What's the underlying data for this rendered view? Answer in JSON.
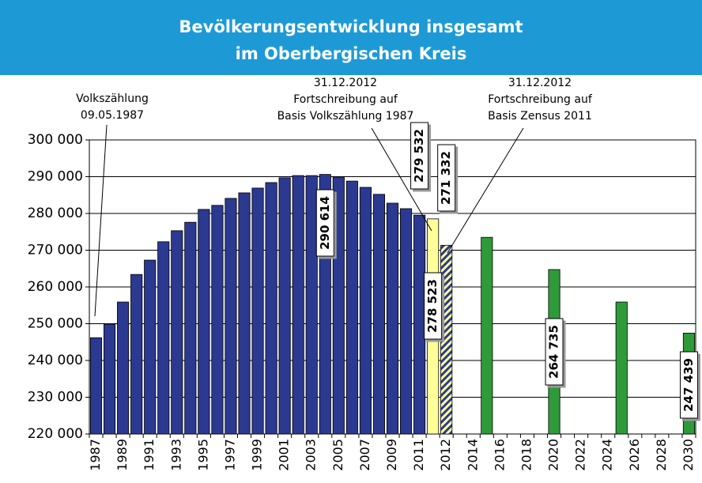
{
  "chart_data": {
    "type": "bar",
    "title": [
      "Bevölkerungsentwicklung insgesamt",
      "im Oberbergischen Kreis"
    ],
    "annotations": [
      {
        "text": [
          "Volkszählung",
          "09.05.1987"
        ]
      },
      {
        "text": [
          "31.12.2012",
          "Fortschreibung auf",
          "Basis Volkszählung 1987"
        ]
      },
      {
        "text": [
          "31.12.2012",
          "Fortschreibung auf",
          "Basis Zensus 2011"
        ]
      }
    ],
    "categories": [
      "1987",
      null,
      "1989",
      null,
      "1991",
      null,
      "1993",
      null,
      "1995",
      null,
      "1997",
      null,
      "1999",
      null,
      "2001",
      null,
      "2003",
      null,
      "2005",
      null,
      "2007",
      null,
      "2009",
      null,
      "2011",
      null,
      "2012",
      null,
      "2014",
      null,
      "2016",
      null,
      "2018",
      null,
      "2020",
      null,
      "2022",
      null,
      "2024",
      null,
      "2026",
      null,
      "2028",
      null,
      "2030"
    ],
    "series": [
      {
        "color": "#2b3990",
        "values": [
          246200,
          249900,
          255900,
          263400,
          267300,
          272300,
          275300,
          277600,
          281100,
          282200,
          284100,
          285600,
          286900,
          288400,
          289700,
          290300,
          290300,
          290614,
          289900,
          288800,
          287100,
          285200,
          282800,
          281300,
          279532,
          null,
          null,
          null,
          null,
          null,
          null,
          null,
          null,
          null,
          null,
          null,
          null,
          null,
          null,
          null,
          null,
          null,
          null,
          null,
          null
        ],
        "value_labels": [
          null,
          null,
          null,
          null,
          null,
          null,
          null,
          null,
          null,
          null,
          null,
          null,
          null,
          null,
          null,
          null,
          null,
          "290 614",
          null,
          null,
          null,
          null,
          null,
          null,
          "279 532",
          null,
          null,
          null,
          null,
          null,
          null,
          null,
          null,
          null,
          null,
          null,
          null,
          null,
          null,
          null,
          null,
          null,
          null,
          null,
          null
        ]
      },
      {
        "color": "#ffff99",
        "values": [
          null,
          null,
          null,
          null,
          null,
          null,
          null,
          null,
          null,
          null,
          null,
          null,
          null,
          null,
          null,
          null,
          null,
          null,
          null,
          null,
          null,
          null,
          null,
          null,
          null,
          278523,
          null,
          null,
          null,
          null,
          null,
          null,
          null,
          null,
          null,
          null,
          null,
          null,
          null,
          null,
          null,
          null,
          null,
          null,
          null
        ],
        "value_labels": [
          null,
          null,
          null,
          null,
          null,
          null,
          null,
          null,
          null,
          null,
          null,
          null,
          null,
          null,
          null,
          null,
          null,
          null,
          null,
          null,
          null,
          null,
          null,
          null,
          null,
          "278 523",
          null,
          null,
          null,
          null,
          null,
          null,
          null,
          null,
          null,
          null,
          null,
          null,
          null,
          null,
          null,
          null,
          null,
          null,
          null
        ]
      },
      {
        "color": "#2b3990",
        "hatch_color": "#ffff99",
        "values": [
          null,
          null,
          null,
          null,
          null,
          null,
          null,
          null,
          null,
          null,
          null,
          null,
          null,
          null,
          null,
          null,
          null,
          null,
          null,
          null,
          null,
          null,
          null,
          null,
          null,
          null,
          271332,
          null,
          null,
          null,
          null,
          null,
          null,
          null,
          null,
          null,
          null,
          null,
          null,
          null,
          null,
          null,
          null,
          null,
          null
        ],
        "value_labels": [
          null,
          null,
          null,
          null,
          null,
          null,
          null,
          null,
          null,
          null,
          null,
          null,
          null,
          null,
          null,
          null,
          null,
          null,
          null,
          null,
          null,
          null,
          null,
          null,
          null,
          null,
          "271 332",
          null,
          null,
          null,
          null,
          null,
          null,
          null,
          null,
          null,
          null,
          null,
          null,
          null,
          null,
          null,
          null,
          null,
          null
        ]
      },
      {
        "color": "#2e9a3a",
        "values": [
          null,
          null,
          null,
          null,
          null,
          null,
          null,
          null,
          null,
          null,
          null,
          null,
          null,
          null,
          null,
          null,
          null,
          null,
          null,
          null,
          null,
          null,
          null,
          null,
          null,
          null,
          null,
          null,
          null,
          273500,
          null,
          null,
          null,
          null,
          264735,
          null,
          null,
          null,
          null,
          255900,
          null,
          null,
          null,
          null,
          247439
        ],
        "value_labels": [
          null,
          null,
          null,
          null,
          null,
          null,
          null,
          null,
          null,
          null,
          null,
          null,
          null,
          null,
          null,
          null,
          null,
          null,
          null,
          null,
          null,
          null,
          null,
          null,
          null,
          null,
          null,
          null,
          null,
          null,
          null,
          null,
          null,
          null,
          "264 735",
          null,
          null,
          null,
          null,
          null,
          null,
          null,
          null,
          null,
          "247 439"
        ]
      }
    ],
    "ylim": [
      220000,
      300000
    ],
    "yticks": [
      {
        "value": 220000,
        "label": "220 000"
      },
      {
        "value": 230000,
        "label": "230 000"
      },
      {
        "value": 240000,
        "label": "240 000"
      },
      {
        "value": 250000,
        "label": "250 000"
      },
      {
        "value": 260000,
        "label": "260 000"
      },
      {
        "value": 270000,
        "label": "270 000"
      },
      {
        "value": 280000,
        "label": "280 000"
      },
      {
        "value": 290000,
        "label": "290 000"
      },
      {
        "value": 300000,
        "label": "300 000"
      }
    ],
    "grid": true
  }
}
